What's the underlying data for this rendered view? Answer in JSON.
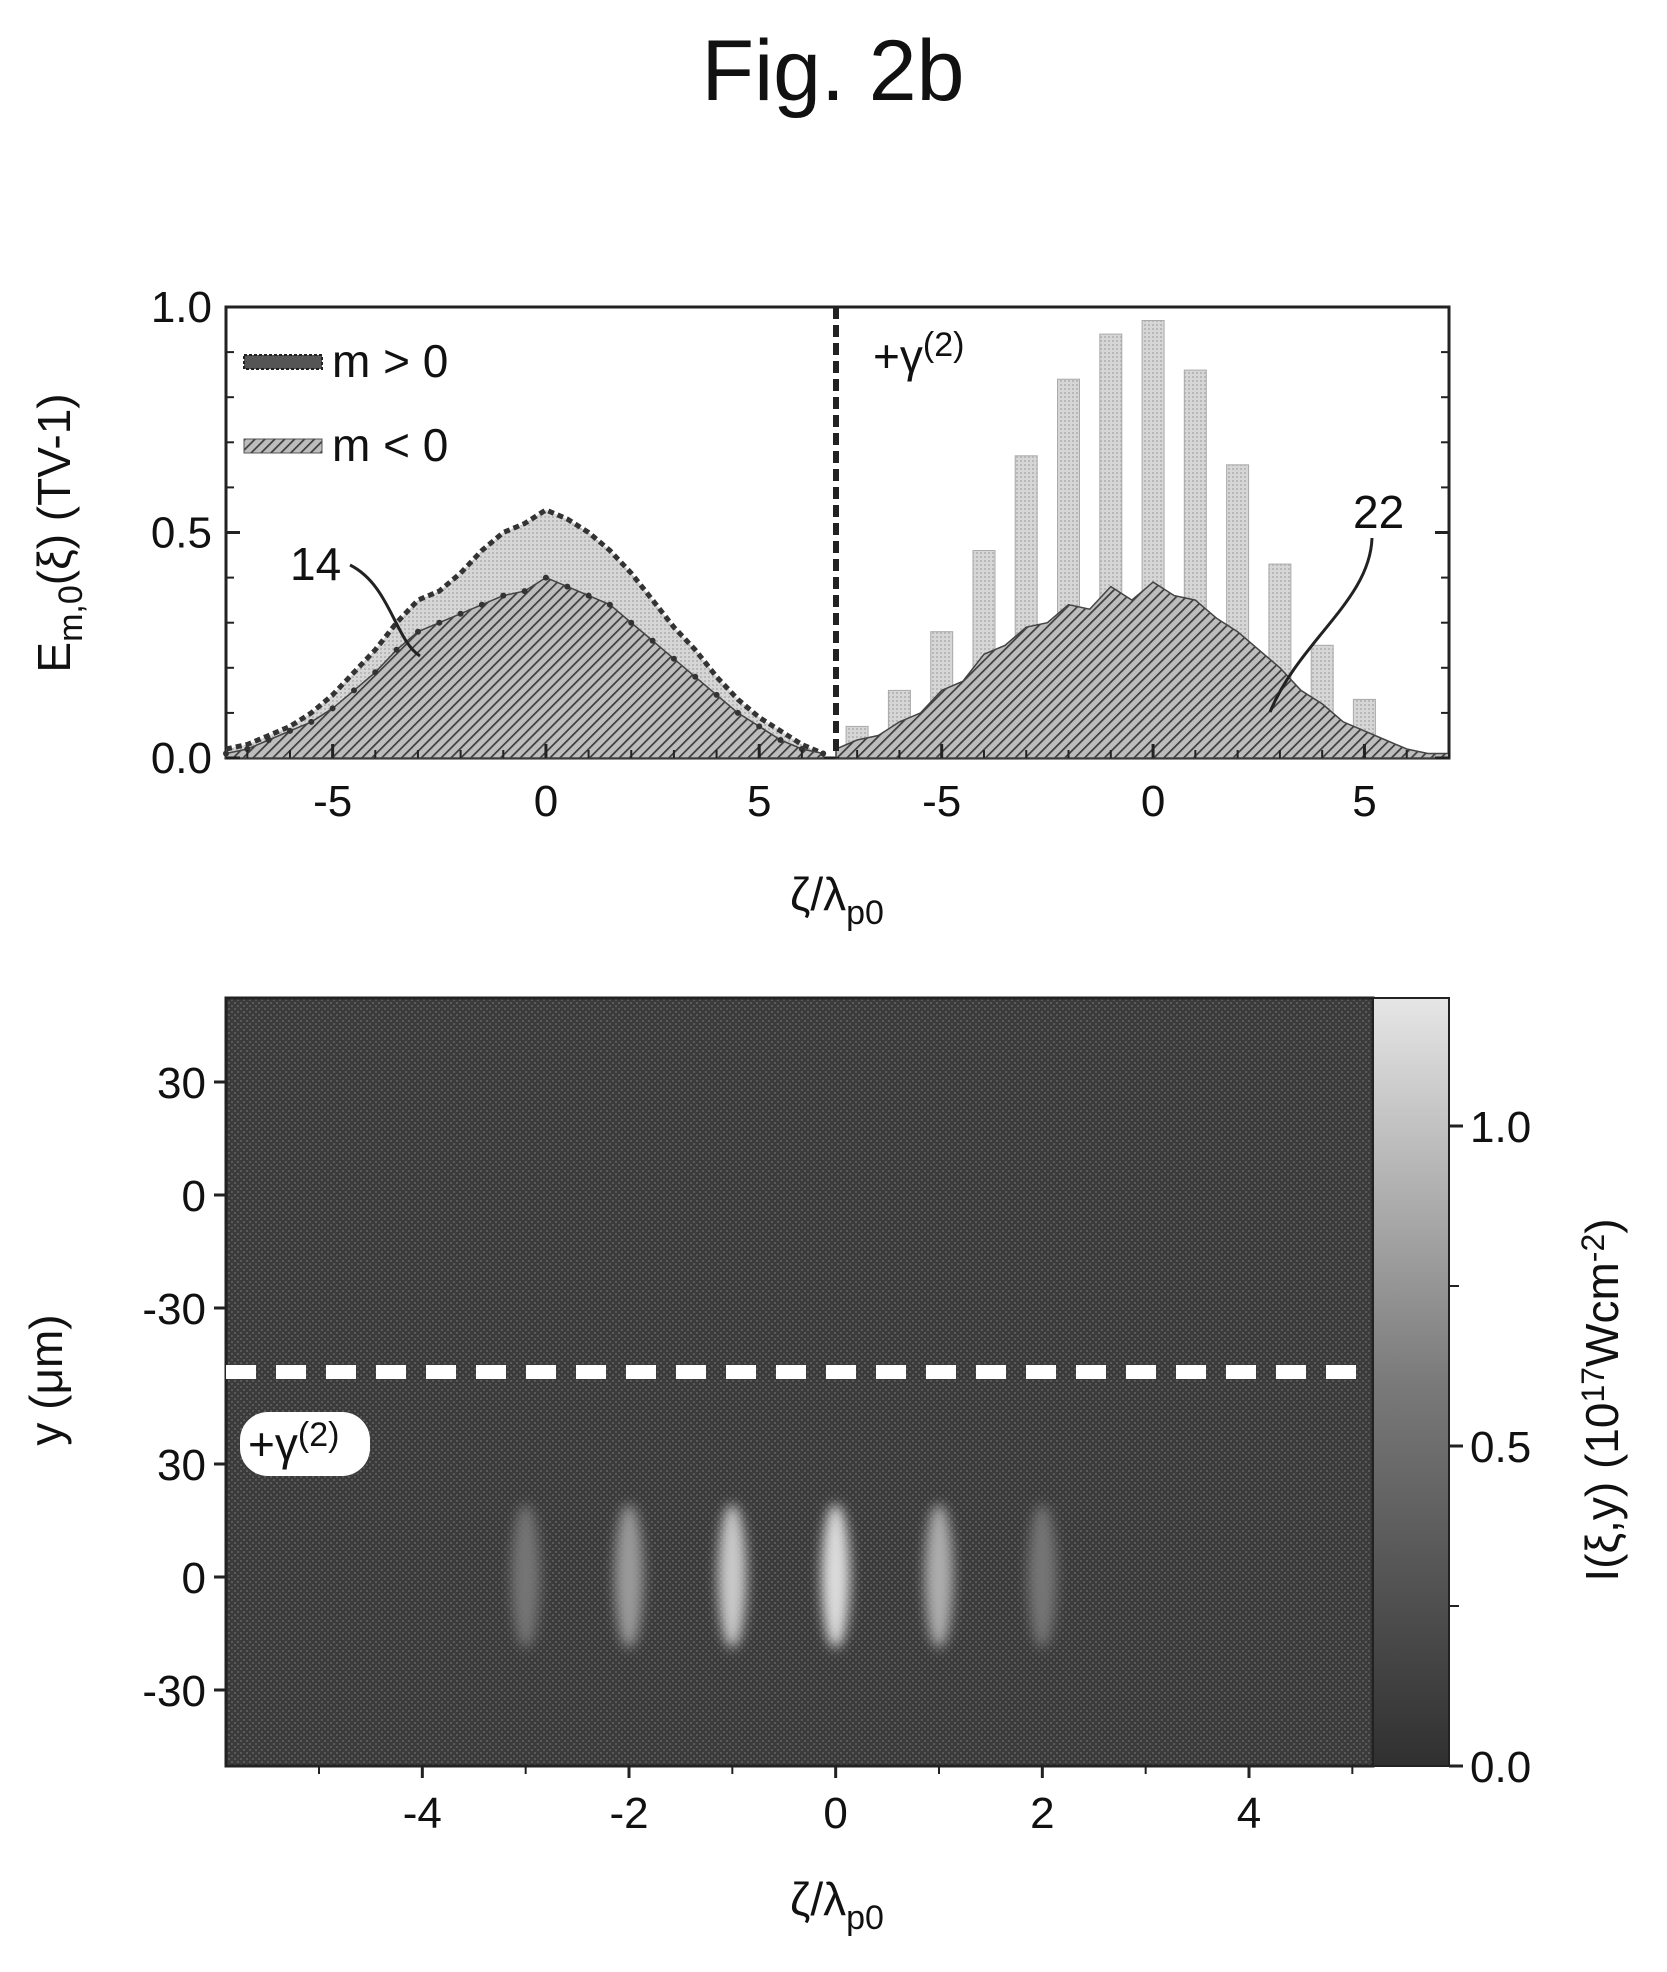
{
  "figure_title": "Fig. 2b",
  "colors": {
    "dark_bg": "#3a3a3a",
    "light_bar": "#cfcfcf",
    "hatch": "#555555",
    "outline": "#222222"
  },
  "chart_data": [
    {
      "type": "bar",
      "panel": "top",
      "ylabel": "E_m,0(ξ) (TV-1)",
      "ylabel_main": "E",
      "ylabel_sub": "m,0",
      "ylabel_rest": "(ξ) (TV-1)",
      "xlabel_main": "ζ/λ",
      "xlabel_sub": "p0",
      "ylim": [
        0,
        1.0
      ],
      "yticks": [
        "0.0",
        "0.5",
        "1.0"
      ],
      "legend": {
        "position": "top-left",
        "entries": [
          "m > 0",
          "m < 0"
        ]
      },
      "left_subpanel": {
        "xlim": [
          -7.5,
          6.8
        ],
        "xticks": [
          "-5",
          "0",
          "5"
        ],
        "annotation": "14",
        "series": [
          {
            "name": "m > 0",
            "style": "dotted-envelope",
            "x": [
              -7.5,
              -7,
              -6.5,
              -6,
              -5.5,
              -5,
              -4.5,
              -4,
              -3.5,
              -3,
              -2.5,
              -2,
              -1.5,
              -1,
              -0.5,
              0,
              0.5,
              1,
              1.5,
              2,
              2.5,
              3,
              3.5,
              4,
              4.5,
              5,
              5.5,
              6,
              6.5
            ],
            "values": [
              0.02,
              0.03,
              0.05,
              0.07,
              0.1,
              0.14,
              0.19,
              0.24,
              0.3,
              0.35,
              0.37,
              0.41,
              0.46,
              0.5,
              0.52,
              0.55,
              0.53,
              0.5,
              0.46,
              0.41,
              0.35,
              0.29,
              0.24,
              0.18,
              0.13,
              0.09,
              0.06,
              0.03,
              0.01
            ]
          },
          {
            "name": "m < 0",
            "style": "hatched-fill",
            "x": [
              -7.5,
              -7,
              -6.5,
              -6,
              -5.5,
              -5,
              -4.5,
              -4,
              -3.5,
              -3,
              -2.5,
              -2,
              -1.5,
              -1,
              -0.5,
              0,
              0.5,
              1,
              1.5,
              2,
              2.5,
              3,
              3.5,
              4,
              4.5,
              5,
              5.5,
              6,
              6.5
            ],
            "values": [
              0.01,
              0.02,
              0.04,
              0.06,
              0.08,
              0.11,
              0.15,
              0.19,
              0.24,
              0.28,
              0.3,
              0.32,
              0.34,
              0.36,
              0.37,
              0.4,
              0.38,
              0.36,
              0.34,
              0.3,
              0.26,
              0.22,
              0.18,
              0.14,
              0.1,
              0.07,
              0.04,
              0.02,
              0.01
            ]
          }
        ]
      },
      "right_subpanel": {
        "xlim": [
          -7.5,
          7
        ],
        "xticks": [
          "-5",
          "0",
          "5"
        ],
        "label": "+γ(2)",
        "label_main": "+γ",
        "label_sup": "(2)",
        "annotation": "22",
        "series": [
          {
            "name": "m > 0",
            "style": "light-bars",
            "x": [
              -7,
              -6,
              -5,
              -4,
              -3,
              -2,
              -1,
              0,
              1,
              2,
              3,
              4,
              5
            ],
            "values": [
              0.07,
              0.15,
              0.28,
              0.46,
              0.67,
              0.84,
              0.94,
              0.97,
              0.86,
              0.65,
              0.43,
              0.25,
              0.13
            ]
          },
          {
            "name": "m < 0",
            "style": "hatched-fill",
            "x": [
              -7.5,
              -7,
              -6.5,
              -6,
              -5.5,
              -5,
              -4.5,
              -4,
              -3.5,
              -3,
              -2.5,
              -2,
              -1.5,
              -1,
              -0.5,
              0,
              0.5,
              1,
              1.5,
              2,
              2.5,
              3,
              3.5,
              4,
              4.5,
              5,
              5.5,
              6,
              6.5,
              7
            ],
            "values": [
              0.02,
              0.04,
              0.05,
              0.08,
              0.1,
              0.15,
              0.17,
              0.23,
              0.25,
              0.29,
              0.3,
              0.34,
              0.33,
              0.38,
              0.35,
              0.39,
              0.36,
              0.35,
              0.31,
              0.28,
              0.24,
              0.2,
              0.15,
              0.12,
              0.08,
              0.06,
              0.04,
              0.02,
              0.01,
              0.01
            ]
          }
        ]
      }
    },
    {
      "type": "heatmap",
      "panel": "bottom",
      "xlabel_main": "ζ/λ",
      "xlabel_sub": "p0",
      "ylabel": "y (μm)",
      "xlim": [
        -5.9,
        5.2
      ],
      "xticks": [
        "-4",
        "-2",
        "0",
        "2",
        "4"
      ],
      "upper_yticks": [
        "30",
        "0",
        "-30"
      ],
      "lower_yticks": [
        "30",
        "0",
        "-30"
      ],
      "label": "+γ(2)",
      "label_main": "+γ",
      "label_sup": "(2)",
      "colorbar": {
        "label": "I(ξ,y) (1017Wcm-2)",
        "label_main": "I(ξ,y) (10",
        "label_sup1": "17",
        "label_mid": "Wcm",
        "label_sup2": "-2",
        "label_end": ")",
        "range": [
          0.0,
          1.2
        ],
        "ticks": [
          "0.0",
          "0.5",
          "1.0"
        ]
      },
      "spots": [
        {
          "x": -3,
          "intensity": 0.25
        },
        {
          "x": -2,
          "intensity": 0.45
        },
        {
          "x": -1,
          "intensity": 0.7
        },
        {
          "x": 0,
          "intensity": 0.8
        },
        {
          "x": 1,
          "intensity": 0.55
        },
        {
          "x": 2,
          "intensity": 0.25
        }
      ]
    }
  ]
}
